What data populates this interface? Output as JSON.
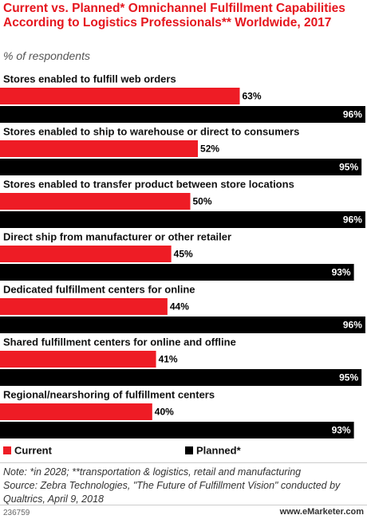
{
  "chart_data": {
    "type": "bar",
    "title": "Current vs. Planned* Omnichannel Fulfillment Capabilities According to Logistics Professionals** Worldwide, 2017",
    "subtitle": "% of respondents",
    "categories": [
      "Stores enabled to fulfill web orders",
      "Stores enabled to ship to warehouse or direct to consumers",
      "Stores enabled to transfer product between store locations",
      "Direct ship from manufacturer or other retailer",
      "Dedicated fulfillment centers for online",
      "Shared fulfillment centers for online and offline",
      "Regional/nearshoring of fulfillment centers"
    ],
    "series": [
      {
        "name": "Current",
        "color": "#ee1c25",
        "values": [
          63,
          52,
          50,
          45,
          44,
          41,
          40
        ],
        "value_labels": [
          "63%",
          "52%",
          "50%",
          "45%",
          "44%",
          "41%",
          "40%"
        ]
      },
      {
        "name": "Planned*",
        "color": "#000000",
        "values": [
          96,
          95,
          96,
          93,
          96,
          95,
          93
        ],
        "value_labels": [
          "96%",
          "95%",
          "96%",
          "93%",
          "96%",
          "95%",
          "93%"
        ]
      }
    ],
    "xlim": [
      0,
      100
    ],
    "note": "Note: *in 2028; **transportation & logistics, retail and manufacturing",
    "source": "Source: Zebra Technologies, \"The Future of Fulfillment Vision\" conducted by Qualtrics, April 9, 2018",
    "chart_id": "236759",
    "credit": "www.eMarketer.com"
  }
}
